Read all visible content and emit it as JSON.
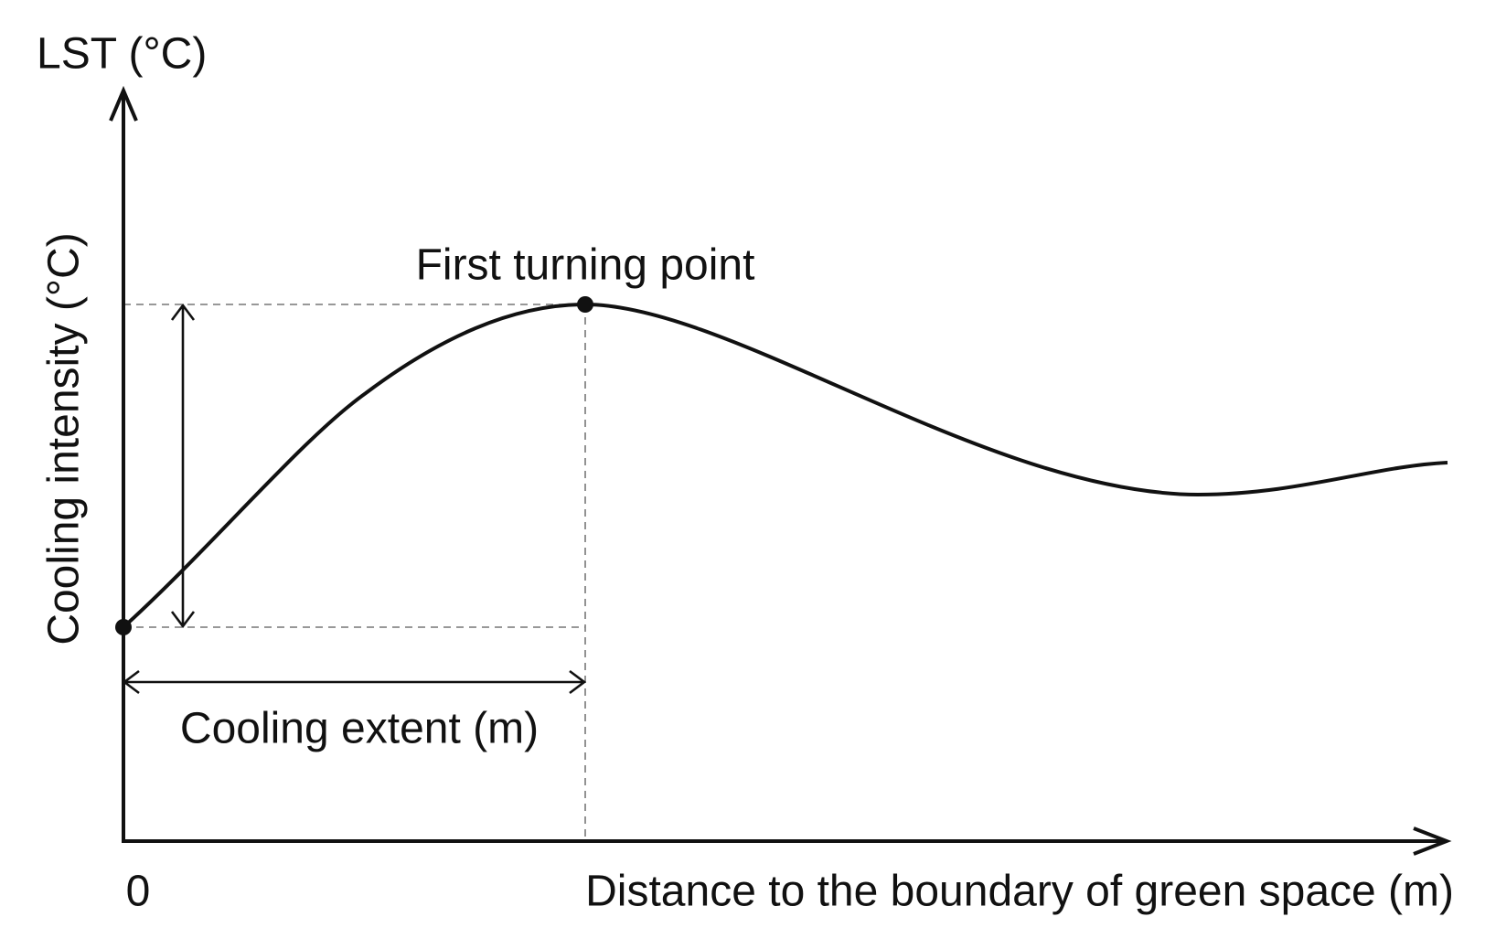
{
  "y_axis": {
    "title": "LST (°C)"
  },
  "x_axis": {
    "title": "Distance to the boundary of green space (m)",
    "origin_label": "0"
  },
  "annotations": {
    "turning_point": "First turning point",
    "intensity": "Cooling intensity (°C)",
    "extent": "Cooling extent (m)"
  }
}
